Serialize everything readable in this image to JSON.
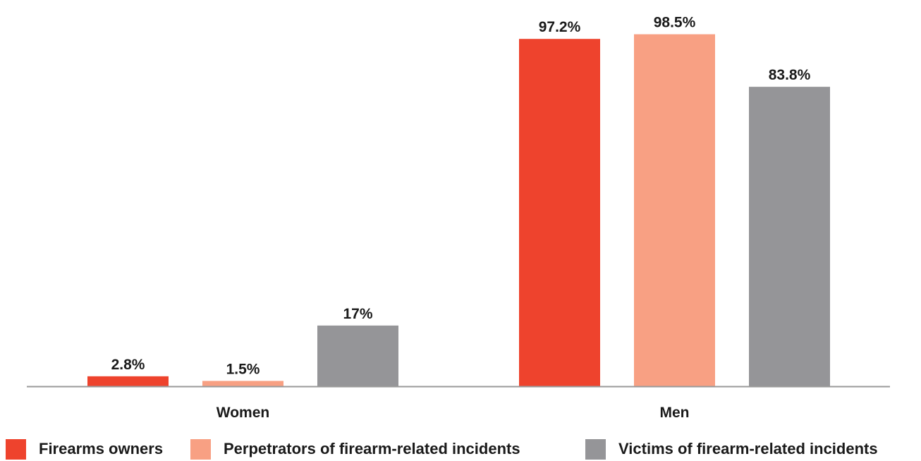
{
  "chart_data": {
    "type": "bar",
    "categories": [
      "Women",
      "Men"
    ],
    "series": [
      {
        "name": "Firearms owners",
        "color": "#ee432d",
        "values": [
          2.8,
          97.2
        ],
        "labels": [
          "2.8%",
          "97.2%"
        ]
      },
      {
        "name": "Perpetrators of firearm-related incidents",
        "color": "#f8a083",
        "values": [
          1.5,
          98.5
        ],
        "labels": [
          "1.5%",
          "98.5%"
        ]
      },
      {
        "name": "Victims of firearm-related incidents",
        "color": "#959598",
        "values": [
          17,
          83.8
        ],
        "labels": [
          "17%",
          "83.8%"
        ]
      }
    ],
    "ylim": [
      0,
      100
    ],
    "grid": false,
    "legend_position": "bottom",
    "axis_color": "#9a9a9a"
  }
}
